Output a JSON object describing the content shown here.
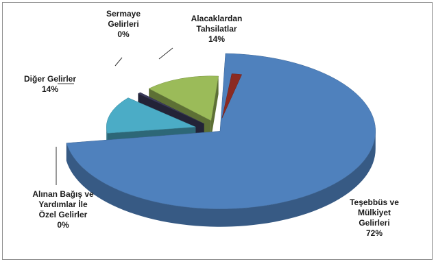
{
  "chart_data": {
    "type": "pie",
    "style": "3d-exploded",
    "slices": [
      {
        "label_lines": [
          "Teşebbüs ve",
          "Mülkiyet",
          "Gelirleri"
        ],
        "pct_text": "72%",
        "value": 72,
        "color": "#4f81bd"
      },
      {
        "label_lines": [
          "Alacaklardan",
          "Tahsilatlar"
        ],
        "pct_text": "14%",
        "value": 14,
        "color": "#4bacc6"
      },
      {
        "label_lines": [
          "Sermaye",
          "Gelirleri"
        ],
        "pct_text": "0%",
        "value": 0,
        "color": "#3b3b5c"
      },
      {
        "label_lines": [
          "Diğer Gelirler"
        ],
        "pct_text": "14%",
        "value": 14,
        "color": "#9bbb59"
      },
      {
        "label_lines": [
          "Alınan Bağış ve",
          "Yardımlar İle",
          "Özel Gelirler"
        ],
        "pct_text": "0%",
        "value": 0,
        "color": "#8b2a22"
      }
    ]
  }
}
